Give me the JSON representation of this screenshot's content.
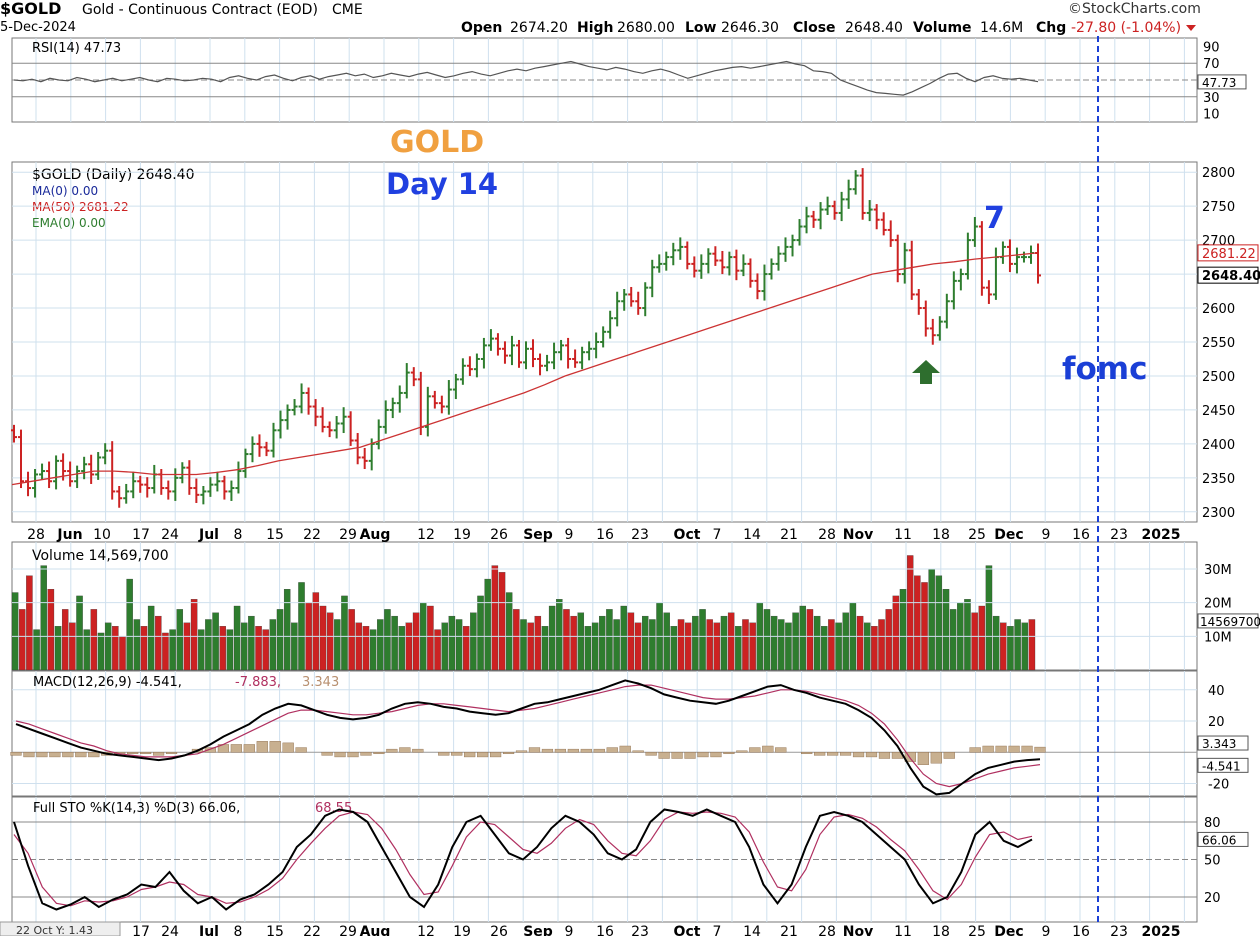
{
  "header": {
    "symbol": "$GOLD",
    "name": "Gold - Continuous Contract (EOD)",
    "exchange": "CME",
    "date": "5-Dec-2024",
    "brand": "©StockCharts.com",
    "open_label": "Open",
    "open": "2674.20",
    "high_label": "High",
    "high": "2680.00",
    "low_label": "Low",
    "low": "2646.30",
    "close_label": "Close",
    "close": "2648.40",
    "volume_label": "Volume",
    "volume": "14.6M",
    "chg_label": "Chg",
    "chg": "-27.80 (-1.04%)"
  },
  "annotations": {
    "gold": "GOLD",
    "day": "Day 14",
    "seven": "7",
    "fomc": "fomc"
  },
  "colors": {
    "up": "#2e7d2e",
    "down": "#cc2222",
    "ma50": "#cc3333",
    "fomc": "#1a3fd6",
    "gold_text": "#f0a040",
    "day_text": "#2040e0",
    "hist": "#c8b090",
    "grid": "#cfe0ee",
    "bg": "#ffffff"
  },
  "chart_data": [
    {
      "type": "line",
      "panel": "rsi",
      "title": "RSI(14) 47.73",
      "last": "47.73",
      "ylim": [
        0,
        100
      ],
      "ticks": [
        "90",
        "70",
        "50",
        "30",
        "10"
      ],
      "values": [
        50,
        49,
        51,
        48,
        52,
        50,
        49,
        53,
        51,
        48,
        50,
        52,
        49,
        51,
        53,
        50,
        48,
        52,
        51,
        49,
        50,
        52,
        51,
        48,
        53,
        55,
        52,
        50,
        54,
        56,
        52,
        49,
        53,
        55,
        51,
        54,
        56,
        58,
        55,
        57,
        53,
        55,
        58,
        56,
        54,
        57,
        59,
        56,
        53,
        55,
        58,
        60,
        57,
        55,
        58,
        61,
        63,
        61,
        64,
        66,
        68,
        70,
        72,
        69,
        66,
        64,
        62,
        65,
        63,
        60,
        58,
        61,
        63,
        60,
        56,
        52,
        55,
        58,
        61,
        63,
        65,
        66,
        64,
        66,
        68,
        70,
        72,
        69,
        67,
        61,
        60,
        58,
        50,
        46,
        42,
        38,
        35,
        34,
        33,
        32,
        36,
        41,
        46,
        52,
        57,
        58,
        52,
        48,
        53,
        55,
        52,
        51,
        52,
        50,
        48
      ]
    },
    {
      "type": "ohlc",
      "panel": "price",
      "title": "$GOLD (Daily) 2648.40",
      "legend": [
        "MA(0) 0.00",
        "MA(50) 2681.22",
        "EMA(0) 0.00"
      ],
      "ylim": [
        2285,
        2815
      ],
      "yticks": [
        "2800",
        "2750",
        "2700",
        "2650",
        "2600",
        "2550",
        "2500",
        "2450",
        "2400",
        "2350",
        "2300"
      ],
      "price_tags": [
        "2681.22",
        "2648.40"
      ],
      "xticks": [
        "28",
        "Jun",
        "10",
        "17",
        "24",
        "Jul",
        "8",
        "15",
        "22",
        "29",
        "Aug",
        "12",
        "19",
        "26",
        "Sep",
        "9",
        "16",
        "23",
        "Oct",
        "7",
        "14",
        "21",
        "28",
        "Nov",
        "11",
        "18",
        "25",
        "Dec",
        "9",
        "16",
        "23",
        "2025"
      ],
      "close": [
        2410,
        2345,
        2335,
        2355,
        2360,
        2345,
        2375,
        2360,
        2345,
        2360,
        2370,
        2355,
        2380,
        2390,
        2330,
        2320,
        2330,
        2345,
        2340,
        2335,
        2355,
        2335,
        2330,
        2350,
        2365,
        2335,
        2325,
        2330,
        2340,
        2345,
        2330,
        2335,
        2360,
        2385,
        2400,
        2395,
        2390,
        2420,
        2435,
        2450,
        2455,
        2475,
        2455,
        2440,
        2425,
        2420,
        2430,
        2440,
        2405,
        2380,
        2375,
        2400,
        2425,
        2450,
        2460,
        2475,
        2505,
        2495,
        2425,
        2470,
        2460,
        2455,
        2480,
        2495,
        2515,
        2510,
        2525,
        2545,
        2555,
        2540,
        2530,
        2545,
        2520,
        2540,
        2525,
        2515,
        2520,
        2535,
        2545,
        2525,
        2520,
        2535,
        2540,
        2550,
        2565,
        2585,
        2610,
        2620,
        2610,
        2600,
        2630,
        2660,
        2665,
        2675,
        2685,
        2690,
        2665,
        2655,
        2665,
        2680,
        2670,
        2660,
        2675,
        2655,
        2665,
        2640,
        2625,
        2650,
        2665,
        2680,
        2690,
        2700,
        2720,
        2735,
        2730,
        2745,
        2750,
        2740,
        2760,
        2775,
        2795,
        2740,
        2745,
        2730,
        2715,
        2700,
        2650,
        2685,
        2620,
        2600,
        2570,
        2560,
        2580,
        2610,
        2640,
        2650,
        2700,
        2720,
        2630,
        2620,
        2675,
        2690,
        2665,
        2675,
        2675,
        2681,
        2648
      ],
      "ma50": [
        2340,
        2345,
        2350,
        2355,
        2360,
        2360,
        2358,
        2355,
        2355,
        2355,
        2358,
        2362,
        2368,
        2375,
        2380,
        2385,
        2390,
        2395,
        2405,
        2415,
        2425,
        2435,
        2445,
        2455,
        2465,
        2475,
        2487,
        2500,
        2510,
        2520,
        2530,
        2540,
        2550,
        2560,
        2570,
        2580,
        2590,
        2600,
        2610,
        2620,
        2630,
        2640,
        2650,
        2655,
        2660,
        2665,
        2668,
        2672,
        2675,
        2678,
        2681
      ]
    },
    {
      "type": "bar",
      "panel": "volume",
      "title": "Volume 14,569,700",
      "last": "14569700",
      "yticks": [
        "30M",
        "20M",
        "10M"
      ],
      "values_millions": [
        23,
        18,
        28,
        12,
        31,
        24,
        13,
        18,
        14,
        22,
        12,
        18,
        11,
        14,
        13,
        10,
        27,
        15,
        13,
        19,
        16,
        11,
        12,
        18,
        14,
        21,
        12,
        15,
        17,
        13,
        12,
        19,
        14,
        16,
        13,
        12,
        15,
        18,
        24,
        14,
        26,
        20,
        23,
        19,
        17,
        15,
        22,
        18,
        14,
        13,
        12,
        15,
        18,
        16,
        13,
        14,
        17,
        20,
        19,
        12,
        14,
        16,
        15,
        13,
        17,
        22,
        27,
        31,
        29,
        23,
        18,
        15,
        14,
        16,
        13,
        19,
        21,
        18,
        16,
        17,
        13,
        14,
        16,
        18,
        15,
        19,
        17,
        14,
        16,
        15,
        20,
        17,
        13,
        15,
        14,
        16,
        18,
        15,
        14,
        16,
        17,
        13,
        15,
        14,
        20,
        18,
        16,
        15,
        14,
        17,
        19,
        18,
        16,
        13,
        15,
        14,
        17,
        20,
        16,
        14,
        13,
        15,
        18,
        22,
        24,
        34,
        28,
        26,
        30,
        28,
        24,
        18,
        20,
        21,
        17,
        19,
        31,
        16,
        14,
        13,
        15,
        14,
        15
      ]
    },
    {
      "type": "line",
      "panel": "macd",
      "title": "MACD(12,26,9) -4.541, -7.883, 3.343",
      "macd_label": "MACD(12,26,9) -4.541,",
      "signal_label": "-7.883,",
      "hist_label": "3.343",
      "tags": [
        "3.343",
        "-4.541"
      ],
      "yticks": [
        "40",
        "20",
        "-20"
      ],
      "ylim": [
        -28,
        52
      ],
      "macd": [
        18,
        15,
        12,
        9,
        6,
        3,
        1,
        -1,
        -2,
        -3,
        -4,
        -5,
        -4,
        -2,
        1,
        5,
        10,
        14,
        18,
        24,
        28,
        31,
        30,
        27,
        24,
        22,
        21,
        22,
        24,
        28,
        31,
        32,
        31,
        29,
        28,
        26,
        25,
        24,
        25,
        28,
        31,
        32,
        34,
        36,
        38,
        40,
        43,
        46,
        44,
        41,
        37,
        35,
        33,
        32,
        31,
        33,
        36,
        39,
        42,
        43,
        40,
        38,
        35,
        33,
        31,
        27,
        22,
        14,
        4,
        -10,
        -22,
        -27,
        -26,
        -20,
        -14,
        -10,
        -8,
        -6,
        -5,
        -4.5
      ],
      "signal": [
        20,
        18,
        15,
        12,
        9,
        6,
        4,
        1,
        -1,
        -2,
        -3,
        -3,
        -3,
        -2,
        -1,
        2,
        5,
        9,
        13,
        17,
        21,
        25,
        27,
        27,
        26,
        25,
        24,
        24,
        25,
        26,
        28,
        30,
        31,
        31,
        30,
        29,
        28,
        27,
        26,
        27,
        28,
        30,
        32,
        34,
        36,
        38,
        40,
        42,
        43,
        43,
        41,
        39,
        37,
        35,
        34,
        34,
        35,
        36,
        38,
        40,
        40,
        39,
        37,
        35,
        33,
        30,
        25,
        18,
        8,
        -4,
        -14,
        -20,
        -22,
        -20,
        -17,
        -14,
        -12,
        -10,
        -9,
        -7.9
      ],
      "hist": [
        -2,
        -3,
        -3,
        -3,
        -3,
        -3,
        -3,
        -2,
        -1,
        -1,
        -1,
        -2,
        -1,
        0,
        2,
        3,
        5,
        5,
        5,
        7,
        7,
        6,
        3,
        0,
        -2,
        -3,
        -3,
        -2,
        -1,
        2,
        3,
        2,
        0,
        -2,
        -2,
        -3,
        -3,
        -3,
        -1,
        1,
        3,
        2,
        2,
        2,
        2,
        2,
        3,
        4,
        1,
        -2,
        -4,
        -4,
        -4,
        -3,
        -3,
        -1,
        1,
        3,
        4,
        3,
        0,
        -1,
        -2,
        -2,
        -2,
        -3,
        -3,
        -4,
        -4,
        -6,
        -8,
        -7,
        -4,
        0,
        3,
        4,
        4,
        4,
        4,
        3.3
      ]
    },
    {
      "type": "line",
      "panel": "stochastic",
      "title": "Full STO %K(14,3) %D(3) 66.06, 68.55",
      "k_label": "Full STO %K(14,3) %D(3) 66.06,",
      "d_label": "68.55",
      "tag": "66.06",
      "yticks": [
        "80",
        "50",
        "20"
      ],
      "ylim": [
        0,
        100
      ],
      "k": [
        80,
        45,
        15,
        10,
        14,
        20,
        12,
        18,
        22,
        30,
        28,
        40,
        25,
        15,
        20,
        10,
        18,
        22,
        30,
        40,
        60,
        70,
        85,
        90,
        88,
        80,
        60,
        40,
        20,
        12,
        30,
        60,
        80,
        85,
        70,
        55,
        50,
        60,
        75,
        85,
        80,
        70,
        55,
        50,
        58,
        80,
        90,
        88,
        85,
        90,
        85,
        80,
        60,
        30,
        15,
        30,
        60,
        85,
        88,
        85,
        80,
        70,
        60,
        50,
        30,
        15,
        20,
        40,
        70,
        80,
        65,
        60,
        66
      ],
      "d": [
        70,
        55,
        28,
        15,
        13,
        17,
        16,
        17,
        20,
        26,
        28,
        32,
        30,
        22,
        20,
        15,
        16,
        20,
        26,
        35,
        50,
        63,
        75,
        85,
        88,
        86,
        75,
        58,
        38,
        22,
        24,
        45,
        68,
        80,
        78,
        68,
        58,
        55,
        63,
        75,
        82,
        78,
        65,
        55,
        53,
        65,
        82,
        88,
        87,
        88,
        87,
        84,
        72,
        48,
        28,
        25,
        42,
        70,
        84,
        86,
        83,
        76,
        66,
        57,
        42,
        25,
        18,
        30,
        52,
        70,
        72,
        66,
        68.55
      ]
    }
  ],
  "footer": {
    "readout": "22 Oct  Y: 1.43",
    "xticks": [
      "17",
      "24",
      "Jul",
      "8",
      "15",
      "22",
      "29",
      "Aug",
      "12",
      "19",
      "26",
      "Sep",
      "9",
      "16",
      "23",
      "Oct",
      "7",
      "14",
      "21",
      "28",
      "Nov",
      "11",
      "18",
      "25",
      "Dec",
      "9",
      "16",
      "23",
      "2025"
    ]
  }
}
